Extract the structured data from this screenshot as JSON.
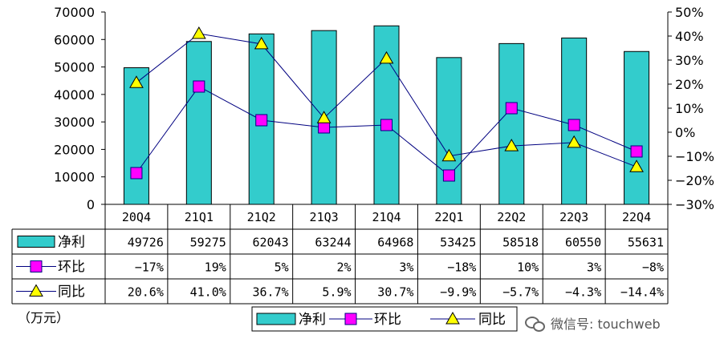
{
  "chart_data": {
    "type": "bar",
    "categories": [
      "20Q4",
      "21Q1",
      "21Q2",
      "21Q3",
      "21Q4",
      "22Q1",
      "22Q2",
      "22Q3",
      "22Q4"
    ],
    "series": [
      {
        "name": "净利",
        "type": "bar",
        "axis": "left",
        "values": [
          49726,
          59275,
          62043,
          63244,
          64968,
          53425,
          58518,
          60550,
          55631
        ],
        "labels": [
          "49726",
          "59275",
          "62043",
          "63244",
          "64968",
          "53425",
          "58518",
          "60550",
          "55631"
        ],
        "color": "#33CCCC"
      },
      {
        "name": "环比",
        "type": "line",
        "axis": "right",
        "values": [
          -17,
          19,
          5,
          2,
          3,
          -18,
          10,
          3,
          -8
        ],
        "labels": [
          "−17%",
          "19%",
          "5%",
          "2%",
          "3%",
          "−18%",
          "10%",
          "3%",
          "−8%"
        ],
        "color": "#FF00FF"
      },
      {
        "name": "同比",
        "type": "line",
        "axis": "right",
        "values": [
          20.6,
          41.0,
          36.7,
          5.9,
          30.7,
          -9.9,
          -5.7,
          -4.3,
          -14.4
        ],
        "labels": [
          "20.6%",
          "41.0%",
          "36.7%",
          "5.9%",
          "30.7%",
          "−9.9%",
          "−5.7%",
          "−4.3%",
          "−14.4%"
        ],
        "color": "#FFFF00"
      }
    ],
    "ylim": [
      0,
      70000
    ],
    "y2lim": [
      -30,
      50
    ],
    "yticks": [
      "70000",
      "60000",
      "50000",
      "40000",
      "30000",
      "20000",
      "10000",
      "0"
    ],
    "y2ticks": [
      "50%",
      "40%",
      "30%",
      "20%",
      "10%",
      "0%",
      "−10%",
      "−20%",
      "−30%"
    ],
    "unit": "（万元）",
    "legend_position": "bottom"
  },
  "watermark": "微信号: touchweb"
}
